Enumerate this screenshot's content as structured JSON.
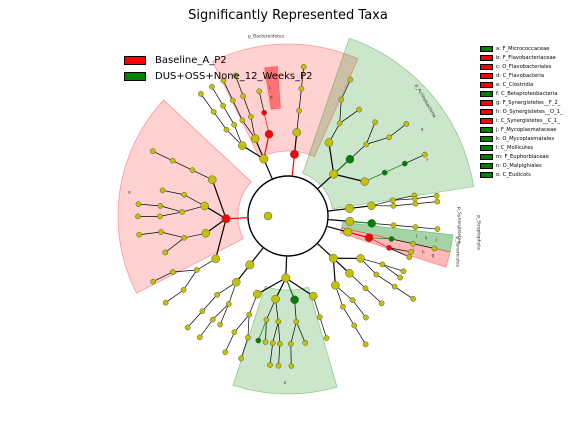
{
  "chart_data": {
    "type": "cladogram",
    "title": "Significantly Represented Taxa",
    "groups": [
      {
        "name": "Baseline_A_P2",
        "color": "#ff0000"
      },
      {
        "name": "DUS+OSS+None_12_Weeks_P2",
        "color": "#008000"
      }
    ],
    "taxa": [
      {
        "key": "a",
        "label": "a: F_Micrococcaceae",
        "group": "DUS+OSS+None_12_Weeks_P2"
      },
      {
        "key": "b",
        "label": "b: F_Flavobacteriaceae",
        "group": "Baseline_A_P2"
      },
      {
        "key": "c",
        "label": "c: O_Flavobacteriales",
        "group": "Baseline_A_P2"
      },
      {
        "key": "d",
        "label": "d: C_Flavobacteria",
        "group": "Baseline_A_P2"
      },
      {
        "key": "e",
        "label": "e: C_Clostridia",
        "group": "Baseline_A_P2"
      },
      {
        "key": "f",
        "label": "f: C_Betaproteobacteria",
        "group": "DUS+OSS+None_12_Weeks_P2"
      },
      {
        "key": "g",
        "label": "g: F_Synergistetes__F_2_",
        "group": "Baseline_A_P2"
      },
      {
        "key": "h",
        "label": "h: O_Synergistetes__O_1_",
        "group": "Baseline_A_P2"
      },
      {
        "key": "i",
        "label": "i: C_Synergistetes__C_1_",
        "group": "Baseline_A_P2"
      },
      {
        "key": "j",
        "label": "j: F_Mycoplasmataceae",
        "group": "DUS+OSS+None_12_Weeks_P2"
      },
      {
        "key": "k",
        "label": "k: O_Mycoplasmatales",
        "group": "DUS+OSS+None_12_Weeks_P2"
      },
      {
        "key": "l",
        "label": "l: C_Mollicutes",
        "group": "DUS+OSS+None_12_Weeks_P2"
      },
      {
        "key": "m",
        "label": "m: F_Euphorbiaceae",
        "group": "DUS+OSS+None_12_Weeks_P2"
      },
      {
        "key": "n",
        "label": "n: O_Malpighiales",
        "group": "DUS+OSS+None_12_Weeks_P2"
      },
      {
        "key": "o",
        "label": "o: C_Eudicots",
        "group": "DUS+OSS+None_12_Weeks_P2"
      }
    ],
    "clade_labels": [
      {
        "text": "p_Bacteroidetes",
        "group": "Baseline_A_P2"
      },
      {
        "text": "p_Actinobacteria",
        "group": "DUS+OSS+None_12_Weeks_P2"
      },
      {
        "text": "p_Synergistetes",
        "group": "Baseline_A_P2"
      },
      {
        "text": "p_Tenericutes",
        "group": "DUS+OSS+None_12_Weeks_P2"
      },
      {
        "text": "p_Streptophyta",
        "group": "DUS+OSS+None_12_Weeks_P2"
      },
      {
        "text": "e",
        "group": "Baseline_A_P2"
      },
      {
        "text": "o",
        "group": "DUS+OSS+None_12_Weeks_P2"
      }
    ],
    "node_colors": {
      "neutral": "#c2c200",
      "enriched_a": "#ff0000",
      "enriched_b": "#008000"
    }
  }
}
